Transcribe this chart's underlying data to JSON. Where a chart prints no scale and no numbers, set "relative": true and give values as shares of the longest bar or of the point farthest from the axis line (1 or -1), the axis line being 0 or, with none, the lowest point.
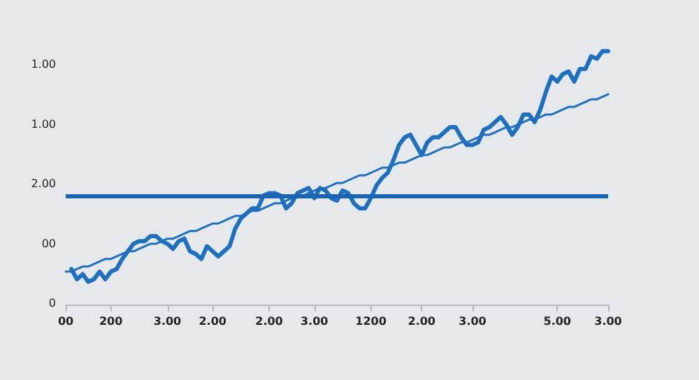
{
  "chart_data": {
    "type": "line",
    "relative": true,
    "categories": [
      "00",
      null,
      null,
      null,
      null,
      null,
      null,
      null,
      "200",
      null,
      null,
      null,
      null,
      null,
      null,
      null,
      null,
      null,
      "3.00",
      null,
      null,
      null,
      null,
      null,
      null,
      null,
      "2.00",
      null,
      null,
      null,
      null,
      null,
      null,
      null,
      null,
      null,
      "2.00",
      null,
      null,
      null,
      null,
      null,
      null,
      null,
      "3.00",
      null,
      null,
      null,
      null,
      null,
      null,
      null,
      null,
      null,
      "1200",
      null,
      null,
      null,
      null,
      null,
      null,
      null,
      null,
      "2.00",
      null,
      null,
      null,
      null,
      null,
      null,
      null,
      null,
      "3.00",
      null,
      null,
      null,
      null,
      null,
      null,
      null,
      null,
      null,
      null,
      null,
      null,
      null,
      null,
      "5.00",
      null,
      null,
      null,
      null,
      null,
      null,
      null,
      null,
      "3.00"
    ],
    "annotations": [
      "1.00",
      "1.00",
      "2.00",
      "00",
      "0"
    ],
    "grid": false,
    "marker": "none",
    "line_style": "solid",
    "series": [
      {
        "color": "#1f6fbf",
        "values": [
          null,
          0.14,
          0.1,
          0.12,
          0.09,
          0.1,
          0.13,
          0.1,
          0.13,
          0.14,
          0.18,
          0.21,
          0.24,
          0.25,
          0.25,
          0.27,
          0.27,
          0.25,
          0.24,
          0.22,
          0.25,
          0.26,
          0.21,
          0.2,
          0.18,
          0.23,
          0.21,
          0.19,
          0.21,
          0.23,
          0.3,
          0.34,
          0.36,
          0.38,
          0.38,
          0.43,
          0.44,
          0.44,
          0.43,
          0.38,
          0.4,
          0.44,
          0.45,
          0.46,
          0.42,
          0.46,
          0.45,
          0.42,
          0.41,
          0.45,
          0.44,
          0.4,
          0.38,
          0.38,
          0.42,
          0.47,
          0.5,
          0.52,
          0.57,
          0.63,
          0.66,
          0.67,
          0.63,
          0.59,
          0.64,
          0.66,
          0.66,
          0.68,
          0.7,
          0.7,
          0.66,
          0.63,
          0.63,
          0.64,
          0.69,
          0.7,
          0.72,
          0.74,
          0.71,
          0.67,
          0.7,
          0.75,
          0.75,
          0.72,
          0.77,
          0.84,
          0.9,
          0.88,
          0.91,
          0.92,
          0.88,
          0.93,
          0.93,
          0.98,
          0.97,
          1,
          1
        ]
      },
      {
        "color": "#1f6fbf",
        "values": [
          0.13,
          0.13,
          0.14,
          0.15,
          0.15,
          0.16,
          0.17,
          0.18,
          0.18,
          0.19,
          0.2,
          0.21,
          0.21,
          0.22,
          0.23,
          0.24,
          0.24,
          0.25,
          0.26,
          0.26,
          0.27,
          0.28,
          0.29,
          0.29,
          0.3,
          0.31,
          0.32,
          0.32,
          0.33,
          0.34,
          0.35,
          0.35,
          0.36,
          0.37,
          0.37,
          0.38,
          0.39,
          0.4,
          0.4,
          0.41,
          0.42,
          0.43,
          0.43,
          0.44,
          0.45,
          0.46,
          0.46,
          0.47,
          0.48,
          0.48,
          0.49,
          0.5,
          0.51,
          0.51,
          0.52,
          0.53,
          0.54,
          0.54,
          0.55,
          0.56,
          0.56,
          0.57,
          0.58,
          0.59,
          0.59,
          0.6,
          0.61,
          0.62,
          0.62,
          0.63,
          0.64,
          0.64,
          0.65,
          0.66,
          0.67,
          0.67,
          0.68,
          0.69,
          0.7,
          0.7,
          0.71,
          0.72,
          0.73,
          0.73,
          0.74,
          0.75,
          0.75,
          0.76,
          0.77,
          0.78,
          0.78,
          0.79,
          0.8,
          0.81,
          0.81,
          0.82,
          0.83
        ]
      }
    ],
    "ref_lines": [
      {
        "axis": "y",
        "value": 0.43,
        "color": "#1a64b4",
        "line_style": "solid"
      }
    ]
  }
}
